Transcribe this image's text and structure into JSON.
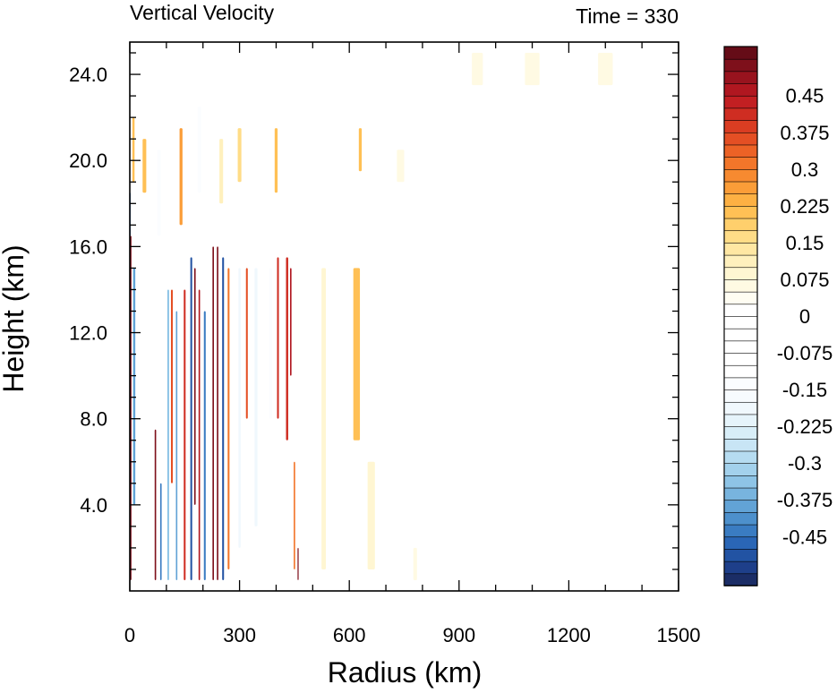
{
  "chart_data": {
    "type": "heatmap",
    "title_left": "Vertical Velocity",
    "title_right": "Time = 330",
    "xlabel": "Radius (km)",
    "ylabel": "Height (km)",
    "xlim": [
      0,
      1500
    ],
    "ylim": [
      0,
      25.5
    ],
    "x_ticks": [
      0,
      300,
      600,
      900,
      1200,
      1500
    ],
    "x_tick_labels": [
      "0",
      "300",
      "600",
      "900",
      "1200",
      "1500"
    ],
    "y_ticks": [
      4,
      8,
      12,
      16,
      20,
      24
    ],
    "y_tick_labels": [
      "4.0",
      "8.0",
      "12.0",
      "16.0",
      "20.0",
      "24.0"
    ],
    "colorbar": {
      "levels": [
        -0.525,
        -0.5,
        -0.475,
        -0.45,
        -0.425,
        -0.4,
        -0.375,
        -0.35,
        -0.325,
        -0.3,
        -0.275,
        -0.25,
        -0.225,
        -0.2,
        -0.175,
        -0.15,
        -0.125,
        -0.1,
        -0.075,
        -0.05,
        -0.025,
        0,
        0.025,
        0.05,
        0.075,
        0.1,
        0.125,
        0.15,
        0.175,
        0.2,
        0.225,
        0.25,
        0.275,
        0.3,
        0.325,
        0.35,
        0.375,
        0.4,
        0.425,
        0.45,
        0.475,
        0.5,
        0.525
      ],
      "labels": [
        "0.45",
        "0.375",
        "0.3",
        "0.225",
        "0.15",
        "0.075",
        "0",
        "-0.075",
        "-0.15",
        "-0.225",
        "-0.3",
        "-0.375",
        "-0.45"
      ],
      "label_values": [
        0.45,
        0.375,
        0.3,
        0.225,
        0.15,
        0.075,
        0,
        -0.075,
        -0.15,
        -0.225,
        -0.3,
        -0.375,
        -0.45
      ],
      "colors": [
        "#1b2d66",
        "#1e3f8a",
        "#2253a3",
        "#2a66b6",
        "#3a7cc2",
        "#4d90cc",
        "#62a3d6",
        "#78b4de",
        "#8ec4e6",
        "#a3d1ec",
        "#b6dcf1",
        "#c8e5f5",
        "#d8eef8",
        "#e6f4fb",
        "#f0f8fd",
        "#f7fbfe",
        "#fbfdff",
        "#ffffff",
        "#ffffff",
        "#ffffff",
        "#ffffff",
        "#ffffff",
        "#ffffff",
        "#fffdf2",
        "#fffae3",
        "#fff6d2",
        "#fff0bd",
        "#ffe7a3",
        "#ffdc87",
        "#ffcf6c",
        "#ffc055",
        "#fdb043",
        "#fb9d38",
        "#f78a30",
        "#f2762a",
        "#ec6226",
        "#e44f24",
        "#da3d22",
        "#cf2d22",
        "#c21f22",
        "#b01720",
        "#98131e",
        "#7e101b",
        "#650c17"
      ]
    },
    "features": [
      {
        "r": 2,
        "z0": 0.5,
        "z1": 16.5,
        "w": 0.5,
        "dr": 5
      },
      {
        "r": 12,
        "z0": 4,
        "z1": 15,
        "w": -0.4,
        "dr": 6
      },
      {
        "r": 70,
        "z0": 0.5,
        "z1": 7.5,
        "w": 0.5,
        "dr": 4
      },
      {
        "r": 85,
        "z0": 0.5,
        "z1": 5,
        "w": -0.45,
        "dr": 4
      },
      {
        "r": 105,
        "z0": 0.5,
        "z1": 14,
        "w": -0.35,
        "dr": 5
      },
      {
        "r": 115,
        "z0": 5,
        "z1": 14,
        "w": 0.35,
        "dr": 5
      },
      {
        "r": 128,
        "z0": 0.5,
        "z1": 13,
        "w": -0.4,
        "dr": 4
      },
      {
        "r": 150,
        "z0": 0.5,
        "z1": 14,
        "w": 0.4,
        "dr": 5
      },
      {
        "r": 168,
        "z0": 0.5,
        "z1": 15.5,
        "w": -0.5,
        "dr": 5
      },
      {
        "r": 178,
        "z0": 4,
        "z1": 15,
        "w": 0.5,
        "dr": 4
      },
      {
        "r": 190,
        "z0": 0.5,
        "z1": 14,
        "w": 0.45,
        "dr": 4
      },
      {
        "r": 205,
        "z0": 0.5,
        "z1": 13,
        "w": -0.45,
        "dr": 5
      },
      {
        "r": 228,
        "z0": 0.5,
        "z1": 16,
        "w": 0.5,
        "dr": 4
      },
      {
        "r": 240,
        "z0": 0.5,
        "z1": 16,
        "w": 0.5,
        "dr": 4
      },
      {
        "r": 255,
        "z0": 0.5,
        "z1": 15.5,
        "w": -0.5,
        "dr": 5
      },
      {
        "r": 270,
        "z0": 1,
        "z1": 15,
        "w": 0.3,
        "dr": 5
      },
      {
        "r": 300,
        "z0": 2,
        "z1": 15,
        "w": -0.2,
        "dr": 6
      },
      {
        "r": 320,
        "z0": 8,
        "z1": 15,
        "w": 0.35,
        "dr": 5
      },
      {
        "r": 345,
        "z0": 3,
        "z1": 15,
        "w": -0.2,
        "dr": 8
      },
      {
        "r": 385,
        "z0": 8,
        "z1": 15,
        "w": -0.15,
        "dr": 8
      },
      {
        "r": 405,
        "z0": 8,
        "z1": 15.5,
        "w": 0.4,
        "dr": 5
      },
      {
        "r": 430,
        "z0": 7,
        "z1": 15.5,
        "w": 0.4,
        "dr": 6
      },
      {
        "r": 440,
        "z0": 10,
        "z1": 15,
        "w": 0.45,
        "dr": 4
      },
      {
        "r": 450,
        "z0": 1,
        "z1": 6,
        "w": 0.3,
        "dr": 4
      },
      {
        "r": 460,
        "z0": 0.5,
        "z1": 2,
        "w": 0.5,
        "dr": 3
      },
      {
        "r": 480,
        "z0": 1,
        "z1": 15,
        "w": -0.1,
        "dr": 12
      },
      {
        "r": 530,
        "z0": 1,
        "z1": 15,
        "w": 0.08,
        "dr": 12
      },
      {
        "r": 570,
        "z0": 9,
        "z1": 15,
        "w": -0.08,
        "dr": 10
      },
      {
        "r": 620,
        "z0": 7,
        "z1": 15,
        "w": 0.22,
        "dr": 18
      },
      {
        "r": 660,
        "z0": 1,
        "z1": 6,
        "w": 0.08,
        "dr": 20
      },
      {
        "r": 680,
        "z0": 18,
        "z1": 21.5,
        "w": -0.1,
        "dr": 20
      },
      {
        "r": 740,
        "z0": 19,
        "z1": 20.5,
        "w": 0.06,
        "dr": 20
      },
      {
        "r": 40,
        "z0": 18.5,
        "z1": 21,
        "w": 0.2,
        "dr": 10
      },
      {
        "r": 80,
        "z0": 16.5,
        "z1": 20.5,
        "w": -0.15,
        "dr": 10
      },
      {
        "r": 140,
        "z0": 17,
        "z1": 21.5,
        "w": 0.25,
        "dr": 8
      },
      {
        "r": 190,
        "z0": 18.5,
        "z1": 22.5,
        "w": -0.15,
        "dr": 10
      },
      {
        "r": 250,
        "z0": 18,
        "z1": 21,
        "w": 0.1,
        "dr": 10
      },
      {
        "r": 300,
        "z0": 19,
        "z1": 21.5,
        "w": 0.15,
        "dr": 10
      },
      {
        "r": 360,
        "z0": 17.5,
        "z1": 21,
        "w": -0.1,
        "dr": 10
      },
      {
        "r": 400,
        "z0": 18.5,
        "z1": 21.5,
        "w": 0.2,
        "dr": 8
      },
      {
        "r": 630,
        "z0": 19.5,
        "z1": 21.5,
        "w": 0.2,
        "dr": 8
      },
      {
        "r": 0,
        "z0": 16.5,
        "z1": 18.5,
        "w": -0.45,
        "dr": 4
      },
      {
        "r": 10,
        "z0": 19,
        "z1": 22,
        "w": 0.2,
        "dr": 6
      },
      {
        "r": 780,
        "z0": 0.5,
        "z1": 2,
        "w": 0.06,
        "dr": 10
      },
      {
        "r": 950,
        "z0": 23.5,
        "z1": 25,
        "w": 0.05,
        "dr": 30
      },
      {
        "r": 1100,
        "z0": 23.5,
        "z1": 25,
        "w": 0.05,
        "dr": 40
      },
      {
        "r": 1300,
        "z0": 23.5,
        "z1": 25,
        "w": 0.05,
        "dr": 40
      }
    ]
  }
}
